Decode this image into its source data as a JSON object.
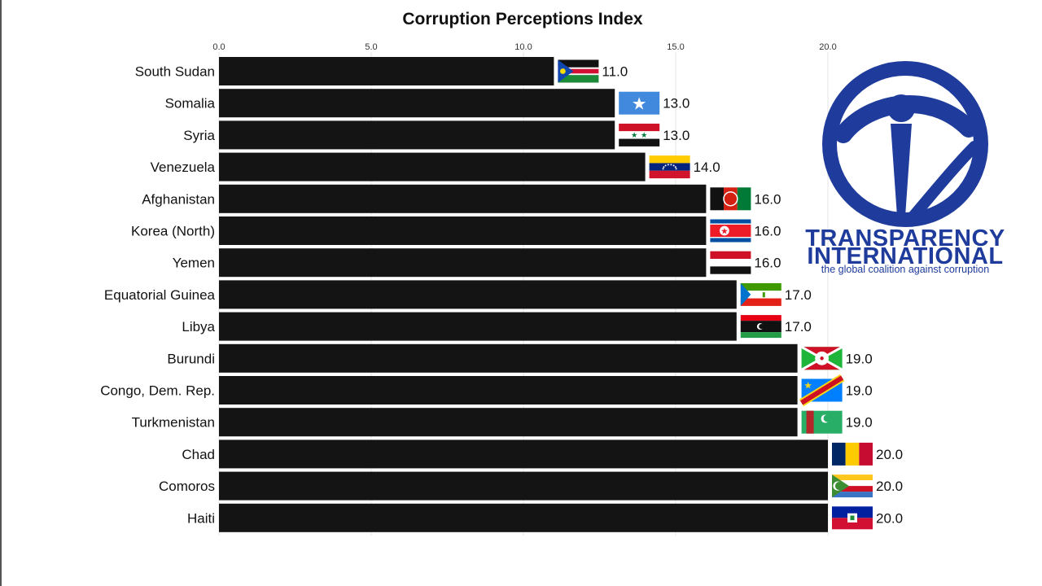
{
  "chart_data": {
    "type": "bar",
    "orientation": "horizontal",
    "title": "Corruption Perceptions Index",
    "xlim": [
      0,
      20
    ],
    "ticks": [
      0,
      5,
      10,
      15,
      20
    ],
    "tick_labels": [
      "0.0",
      "5.0",
      "10.0",
      "15.0",
      "20.0"
    ],
    "bar_color": "#141414",
    "grid": true,
    "categories": [
      "South Sudan",
      "Somalia",
      "Syria",
      "Venezuela",
      "Afghanistan",
      "Korea (North)",
      "Yemen",
      "Equatorial Guinea",
      "Libya",
      "Burundi",
      "Congo, Dem. Rep.",
      "Turkmenistan",
      "Chad",
      "Comoros",
      "Haiti"
    ],
    "values": [
      11.0,
      13.0,
      13.0,
      14.0,
      16.0,
      16.0,
      16.0,
      17.0,
      17.0,
      19.0,
      19.0,
      19.0,
      20.0,
      20.0,
      20.0
    ],
    "value_labels": [
      "11.0",
      "13.0",
      "13.0",
      "14.0",
      "16.0",
      "16.0",
      "16.0",
      "17.0",
      "17.0",
      "19.0",
      "19.0",
      "19.0",
      "20.0",
      "20.0",
      "20.0"
    ],
    "flag_icons": [
      "south-sudan-flag-icon",
      "somalia-flag-icon",
      "syria-flag-icon",
      "venezuela-flag-icon",
      "afghanistan-flag-icon",
      "north-korea-flag-icon",
      "yemen-flag-icon",
      "equatorial-guinea-flag-icon",
      "libya-flag-icon",
      "burundi-flag-icon",
      "dr-congo-flag-icon",
      "turkmenistan-flag-icon",
      "chad-flag-icon",
      "comoros-flag-icon",
      "haiti-flag-icon"
    ]
  },
  "logo": {
    "icon": "transparency-international-logo-icon",
    "name_line1": "TRANSPARENCY",
    "name_line2": "INTERNATIONAL",
    "tagline": "the global coalition against corruption",
    "color": "#1f3c9c"
  }
}
